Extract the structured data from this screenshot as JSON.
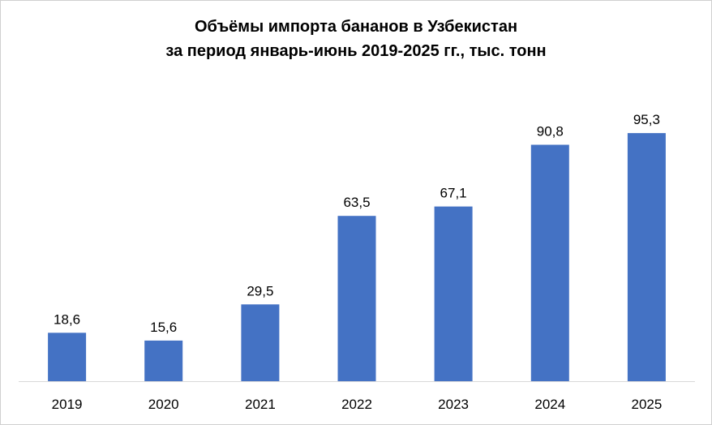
{
  "chart_data": {
    "type": "bar",
    "title_lines": [
      "Объёмы импорта бананов в Узбекистан",
      "за период январь-июнь 2019-2025 гг., тыс. тонн"
    ],
    "categories": [
      "2019",
      "2020",
      "2021",
      "2022",
      "2023",
      "2024",
      "2025"
    ],
    "values": [
      18.6,
      15.6,
      29.5,
      63.5,
      67.1,
      90.8,
      95.3
    ],
    "value_labels": [
      "18,6",
      "15,6",
      "29,5",
      "63,5",
      "67,1",
      "90,8",
      "95,3"
    ],
    "ylim": [
      0,
      100
    ],
    "grid": false,
    "legend": "none",
    "bar_color": "#4472c4"
  }
}
